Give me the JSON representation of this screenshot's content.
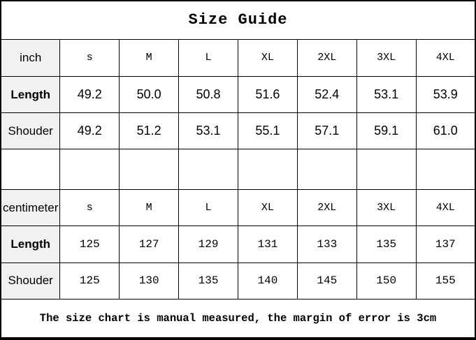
{
  "title": "Size Guide",
  "footer": "The size chart is manual measured, the margin of error is 3cm",
  "colors": {
    "label_background": "#f1f1f1",
    "border": "#000000",
    "background": "#ffffff",
    "text": "#000000"
  },
  "sections": [
    {
      "unit": "inch",
      "sizes": [
        "s",
        "M",
        "L",
        "XL",
        "2XL",
        "3XL",
        "4XL"
      ],
      "rows": [
        {
          "label": "Length",
          "values": [
            "49.2",
            "50.0",
            "50.8",
            "51.6",
            "52.4",
            "53.1",
            "53.9"
          ]
        },
        {
          "label": "Shouder",
          "values": [
            "49.2",
            "51.2",
            "53.1",
            "55.1",
            "57.1",
            "59.1",
            "61.0"
          ]
        }
      ]
    },
    {
      "unit": "centimeter",
      "sizes": [
        "s",
        "M",
        "L",
        "XL",
        "2XL",
        "3XL",
        "4XL"
      ],
      "rows": [
        {
          "label": "Length",
          "values": [
            "125",
            "127",
            "129",
            "131",
            "133",
            "135",
            "137"
          ]
        },
        {
          "label": "Shouder",
          "values": [
            "125",
            "130",
            "135",
            "140",
            "145",
            "150",
            "155"
          ]
        }
      ]
    }
  ]
}
